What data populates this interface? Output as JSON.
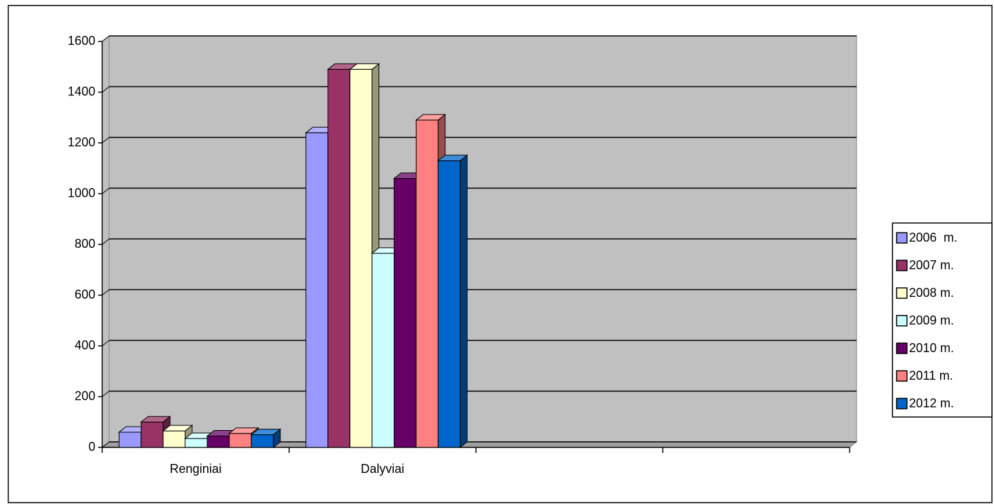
{
  "chart_data": {
    "type": "bar3d",
    "categories": [
      "Renginiai",
      "Dalyviai",
      null,
      null
    ],
    "series": [
      {
        "name": "2006  m.",
        "color": "#9999ff",
        "values": [
          60,
          1240,
          null,
          null
        ]
      },
      {
        "name": "2007 m.",
        "color": "#993366",
        "values": [
          100,
          1490,
          null,
          null
        ]
      },
      {
        "name": "2008 m.",
        "color": "#ffffcc",
        "values": [
          65,
          1490,
          null,
          null
        ]
      },
      {
        "name": "2009 m.",
        "color": "#ccffff",
        "values": [
          35,
          765,
          null,
          null
        ]
      },
      {
        "name": "2010 m.",
        "color": "#660066",
        "values": [
          45,
          1060,
          null,
          null
        ]
      },
      {
        "name": "2011 m.",
        "color": "#ff8080",
        "values": [
          55,
          1290,
          null,
          null
        ]
      },
      {
        "name": "2012 m.",
        "color": "#0066cc",
        "values": [
          50,
          1130,
          null,
          null
        ]
      }
    ],
    "ylim": [
      0,
      1600
    ],
    "yticks": [
      0,
      200,
      400,
      600,
      800,
      1000,
      1200,
      1400,
      1600
    ],
    "grid": true,
    "legend": "right"
  }
}
